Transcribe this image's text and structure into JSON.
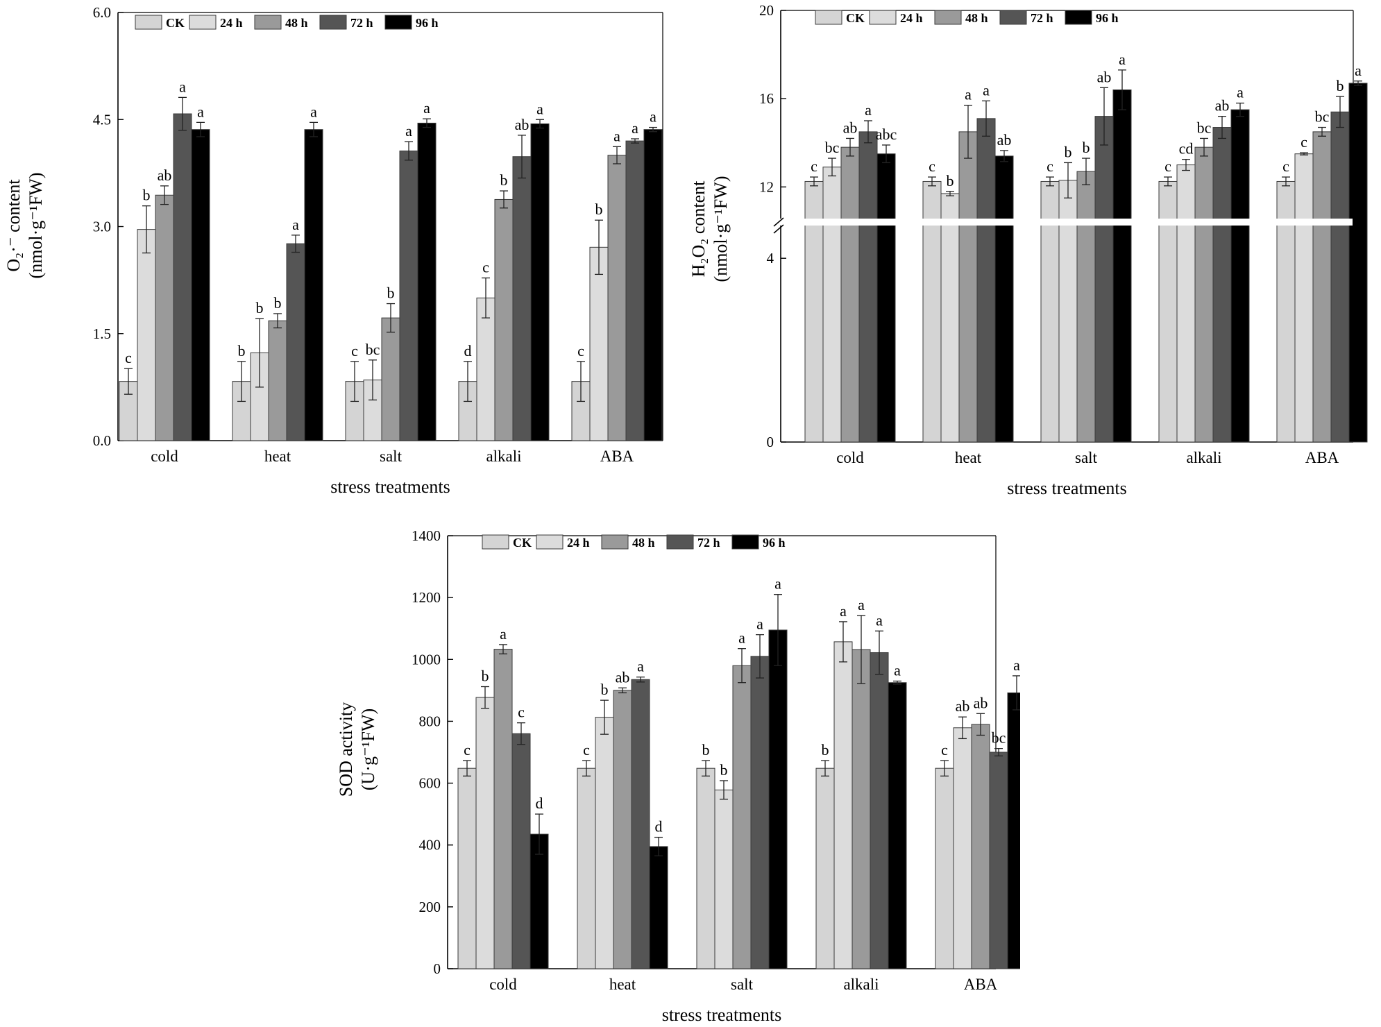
{
  "chart_data": [
    {
      "id": "o2",
      "type": "bar",
      "categories": [
        "cold",
        "heat",
        "salt",
        "alkali",
        "ABA"
      ],
      "series": [
        {
          "name": "CK",
          "color": "#d4d4d4",
          "values": [
            0.83,
            0.83,
            0.83,
            0.83,
            0.83
          ],
          "errors": [
            0.18,
            0.28,
            0.28,
            0.28,
            0.28
          ],
          "sig": [
            "c",
            "b",
            "c",
            "d",
            "c"
          ]
        },
        {
          "name": "24 h",
          "color": "#dcdcdc",
          "values": [
            2.96,
            1.23,
            0.85,
            2.0,
            2.71
          ],
          "errors": [
            0.33,
            0.48,
            0.28,
            0.28,
            0.38
          ],
          "sig": [
            "b",
            "b",
            "bc",
            "c",
            "b"
          ]
        },
        {
          "name": "48 h",
          "color": "#9a9a9a",
          "values": [
            3.44,
            1.68,
            1.72,
            3.38,
            4.0
          ],
          "errors": [
            0.13,
            0.1,
            0.2,
            0.12,
            0.12
          ],
          "sig": [
            "ab",
            "b",
            "b",
            "b",
            "a"
          ]
        },
        {
          "name": "72 h",
          "color": "#555555",
          "values": [
            4.58,
            2.76,
            4.06,
            3.98,
            4.2
          ],
          "errors": [
            0.23,
            0.12,
            0.13,
            0.3,
            0.03
          ],
          "sig": [
            "a",
            "a",
            "a",
            "ab",
            "a"
          ]
        },
        {
          "name": "96 h",
          "color": "#000000",
          "values": [
            4.36,
            4.36,
            4.45,
            4.44,
            4.36
          ],
          "errors": [
            0.1,
            0.1,
            0.06,
            0.06,
            0.03
          ],
          "sig": [
            "a",
            "a",
            "a",
            "a",
            "a"
          ]
        }
      ],
      "title": "",
      "xlabel": "stress treatments",
      "ylabel_line1": "O₂·⁻ content",
      "ylabel_line2": "(nmol·g⁻¹FW)",
      "ylim": [
        0,
        6.0
      ],
      "yticks": [
        0.0,
        1.5,
        3.0,
        4.5,
        6.0
      ],
      "ytick_labels": [
        "0.0",
        "1.5",
        "3.0",
        "4.5",
        "6.0"
      ],
      "legend": "top-left"
    },
    {
      "id": "h2o2",
      "type": "bar",
      "categories": [
        "cold",
        "heat",
        "salt",
        "alkali",
        "ABA"
      ],
      "series": [
        {
          "name": "CK",
          "color": "#d4d4d4",
          "values": [
            12.25,
            12.25,
            12.25,
            12.25,
            12.25
          ],
          "errors": [
            0.2,
            0.2,
            0.2,
            0.2,
            0.2
          ],
          "sig": [
            "c",
            "c",
            "c",
            "c",
            "c"
          ]
        },
        {
          "name": "24 h",
          "color": "#dcdcdc",
          "values": [
            12.9,
            11.7,
            12.3,
            13.0,
            13.5
          ],
          "errors": [
            0.4,
            0.1,
            0.8,
            0.25,
            0.05
          ],
          "sig": [
            "bc",
            "b",
            "b",
            "cd",
            "c"
          ]
        },
        {
          "name": "48 h",
          "color": "#9a9a9a",
          "values": [
            13.8,
            14.5,
            12.7,
            13.8,
            14.5
          ],
          "errors": [
            0.4,
            1.2,
            0.6,
            0.4,
            0.2
          ],
          "sig": [
            "ab",
            "a",
            "b",
            "bc",
            "bc"
          ]
        },
        {
          "name": "72 h",
          "color": "#555555",
          "values": [
            14.5,
            15.1,
            15.2,
            14.7,
            15.4
          ],
          "errors": [
            0.5,
            0.8,
            1.3,
            0.5,
            0.7
          ],
          "sig": [
            "a",
            "a",
            "ab",
            "ab",
            "b"
          ]
        },
        {
          "name": "96 h",
          "color": "#000000",
          "values": [
            13.5,
            13.4,
            16.4,
            15.5,
            16.7
          ],
          "errors": [
            0.4,
            0.25,
            0.9,
            0.3,
            0.1
          ],
          "sig": [
            "abc",
            "ab",
            "a",
            "a",
            "a"
          ]
        }
      ],
      "title": "",
      "xlabel": "stress treatments",
      "ylabel_line1": "H₂O₂ content",
      "ylabel_line2": "(nmol·g⁻¹FW)",
      "axis_break": [
        5,
        10
      ],
      "ylim": [
        0,
        20
      ],
      "yticks": [
        0,
        4,
        12,
        16,
        20
      ],
      "ytick_labels": [
        "0",
        "4",
        "12",
        "16",
        "20"
      ],
      "legend": "top-left"
    },
    {
      "id": "sod",
      "type": "bar",
      "categories": [
        "cold",
        "heat",
        "salt",
        "alkali",
        "ABA"
      ],
      "series": [
        {
          "name": "CK",
          "color": "#d4d4d4",
          "values": [
            648,
            648,
            648,
            648,
            648
          ],
          "errors": [
            25,
            25,
            25,
            25,
            25
          ],
          "sig": [
            "c",
            "c",
            "b",
            "b",
            "c"
          ]
        },
        {
          "name": "24 h",
          "color": "#dcdcdc",
          "values": [
            877,
            813,
            578,
            1057,
            779
          ],
          "errors": [
            35,
            55,
            30,
            65,
            35
          ],
          "sig": [
            "b",
            "b",
            "b",
            "a",
            "ab"
          ]
        },
        {
          "name": "48 h",
          "color": "#9a9a9a",
          "values": [
            1033,
            900,
            980,
            1032,
            790
          ],
          "errors": [
            15,
            8,
            55,
            110,
            35
          ],
          "sig": [
            "a",
            "ab",
            "a",
            "a",
            "ab"
          ]
        },
        {
          "name": "72 h",
          "color": "#555555",
          "values": [
            760,
            935,
            1010,
            1022,
            700
          ],
          "errors": [
            35,
            8,
            70,
            70,
            12
          ],
          "sig": [
            "c",
            "a",
            "a",
            "a",
            "bc"
          ]
        },
        {
          "name": "96 h",
          "color": "#000000",
          "values": [
            435,
            395,
            1095,
            925,
            892
          ],
          "errors": [
            65,
            30,
            115,
            5,
            55
          ],
          "sig": [
            "d",
            "d",
            "a",
            "a",
            "a"
          ]
        }
      ],
      "title": "",
      "xlabel": "stress treatments",
      "ylabel_line1": "SOD activity",
      "ylabel_line2": "(U·g⁻¹FW)",
      "ylim": [
        0,
        1400
      ],
      "yticks": [
        0,
        200,
        400,
        600,
        800,
        1000,
        1200,
        1400
      ],
      "ytick_labels": [
        "0",
        "200",
        "400",
        "600",
        "800",
        "1000",
        "1200",
        "1400"
      ],
      "legend": "top-left"
    }
  ]
}
